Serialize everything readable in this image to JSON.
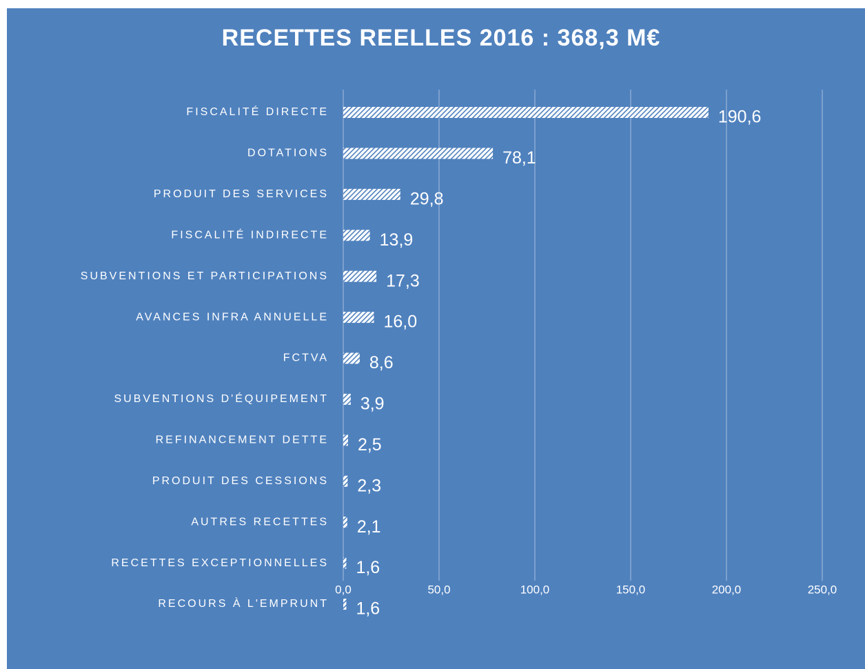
{
  "chart_data": {
    "type": "bar",
    "orientation": "horizontal",
    "title": "RECETTES REELLES 2016 : 368,3 M€",
    "categories": [
      "FISCALITÉ DIRECTE",
      "DOTATIONS",
      "PRODUIT DES SERVICES",
      "FISCALITÉ INDIRECTE",
      "SUBVENTIONS ET PARTICIPATIONS",
      "AVANCES INFRA ANNUELLE",
      "FCTVA",
      "SUBVENTIONS D'ÉQUIPEMENT",
      "REFINANCEMENT DETTE",
      "PRODUIT DES CESSIONS",
      "AUTRES RECETTES",
      "RECETTES EXCEPTIONNELLES",
      "RECOURS À L'EMPRUNT"
    ],
    "values": [
      190.6,
      78.1,
      29.8,
      13.9,
      17.3,
      16.0,
      8.6,
      3.9,
      2.5,
      2.3,
      2.1,
      1.6,
      1.6
    ],
    "value_labels": [
      "190,6",
      "78,1",
      "29,8",
      "13,9",
      "17,3",
      "16,0",
      "8,6",
      "3,9",
      "2,5",
      "2,3",
      "2,1",
      "1,6",
      "1,6"
    ],
    "color": "#ffffff",
    "xlim": [
      0,
      250
    ],
    "xticks": [
      {
        "value": 0,
        "label": "0,0"
      },
      {
        "value": 50,
        "label": "50,0"
      },
      {
        "value": 100,
        "label": "100,0"
      },
      {
        "value": 150,
        "label": "150,0"
      },
      {
        "value": 200,
        "label": "200,0"
      },
      {
        "value": 250,
        "label": "250,0"
      }
    ],
    "grid": true
  }
}
